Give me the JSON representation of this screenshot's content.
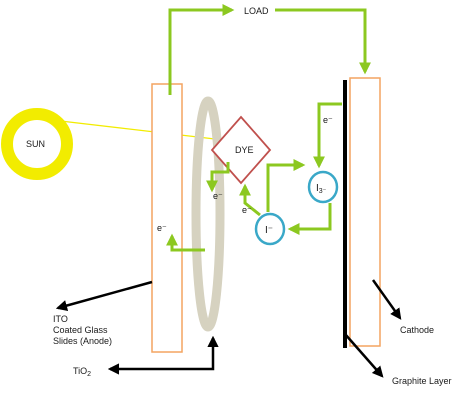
{
  "labels": {
    "load": "LOAD",
    "sun": "SUN",
    "dye": "DYE",
    "electron": "e⁻",
    "iodide": "I⁻",
    "triiodide_base": "I",
    "triiodide_sub": "3⁻",
    "ito_line1": "ITO",
    "ito_line2": "Coated Glass",
    "ito_line3": "Slides (Anode)",
    "tio2_base": "TiO",
    "tio2_sub": "2",
    "cathode": "Cathode",
    "graphite": "Graphite Layer"
  },
  "colors": {
    "electron_flow": "#8cc820",
    "sun_ring": "#f2ec00",
    "sunlight_ray": "#f2ec00",
    "electrode_outline": "#f4a460",
    "tio2_layer": "#d6d2c0",
    "dye_outline": "#c0504d",
    "ion_outline": "#3aa8c8",
    "graphite": "#000000"
  }
}
